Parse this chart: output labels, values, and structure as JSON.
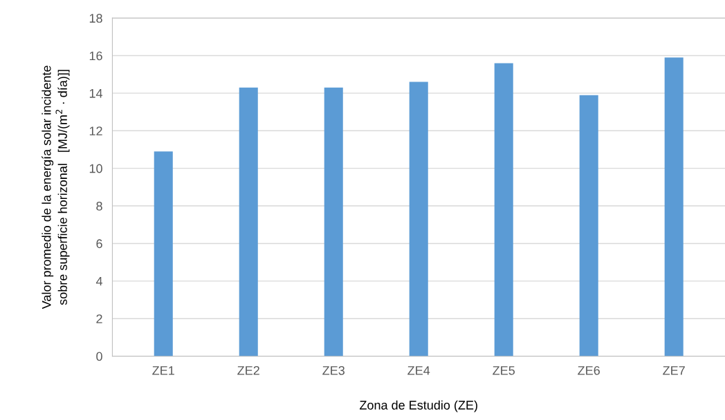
{
  "chart_data": {
    "type": "bar",
    "xlabel": "Zona de Estudio (ZE)",
    "ylabel": "Valor promedio de la energía solar incidente\nsobre superficie horizonal   [MJ/(m$^{2}$ · día)]]",
    "categories": [
      "ZE1",
      "ZE2",
      "ZE3",
      "ZE4",
      "ZE5",
      "ZE6",
      "ZE7"
    ],
    "values": [
      10.9,
      14.3,
      14.3,
      14.6,
      15.6,
      13.9,
      15.9
    ],
    "color": "#5b9bd5",
    "ylim": [
      0,
      18
    ],
    "yticks": [
      0,
      2,
      4,
      6,
      8,
      10,
      12,
      14,
      16,
      18
    ],
    "grid": "y",
    "legend": false
  }
}
